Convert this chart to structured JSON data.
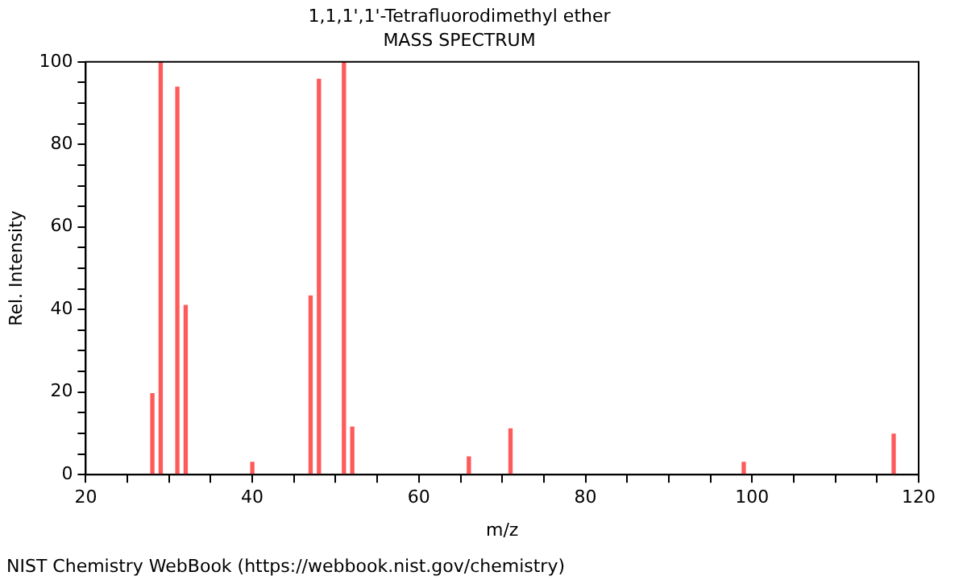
{
  "chart_data": {
    "type": "bar",
    "title": "1,1,1',1'-Tetrafluorodimethyl ether",
    "subtitle": "MASS SPECTRUM",
    "xlabel": "m/z",
    "ylabel": "Rel. Intensity",
    "x": [
      28,
      29,
      31,
      32,
      40,
      47,
      48,
      51,
      52,
      66,
      71,
      99,
      117
    ],
    "values": [
      19.6,
      100,
      93.9,
      41,
      3,
      43.3,
      95.8,
      100,
      11.5,
      4.3,
      11.1,
      3,
      9.8
    ],
    "color": "#ff5a5a",
    "xlim": [
      20,
      120
    ],
    "xticks": [
      20,
      {
        "value": 25,
        "label": null
      },
      {
        "value": 30,
        "label": null
      },
      {
        "value": 35,
        "label": null
      },
      40,
      {
        "value": 45,
        "label": null
      },
      {
        "value": 50,
        "label": null
      },
      {
        "value": 55,
        "label": null
      },
      60,
      {
        "value": 65,
        "label": null
      },
      {
        "value": 70,
        "label": null
      },
      {
        "value": 75,
        "label": null
      },
      80,
      {
        "value": 85,
        "label": null
      },
      {
        "value": 90,
        "label": null
      },
      {
        "value": 95,
        "label": null
      },
      100,
      {
        "value": 105,
        "label": null
      },
      {
        "value": 110,
        "label": null
      },
      {
        "value": 115,
        "label": null
      },
      120
    ],
    "ylim": [
      0,
      100
    ],
    "yticks": [
      0,
      {
        "value": 5,
        "label": null
      },
      {
        "value": 10,
        "label": null
      },
      {
        "value": 15,
        "label": null
      },
      20,
      {
        "value": 25,
        "label": null
      },
      {
        "value": 30,
        "label": null
      },
      {
        "value": 35,
        "label": null
      },
      40,
      {
        "value": 45,
        "label": null
      },
      {
        "value": 50,
        "label": null
      },
      {
        "value": 55,
        "label": null
      },
      60,
      {
        "value": 65,
        "label": null
      },
      {
        "value": 70,
        "label": null
      },
      {
        "value": 75,
        "label": null
      },
      80,
      {
        "value": 85,
        "label": null
      },
      {
        "value": 90,
        "label": null
      },
      {
        "value": 95,
        "label": null
      },
      100
    ],
    "grid": false,
    "legend": false,
    "annotations": [
      "NIST Chemistry WebBook (https://webbook.nist.gov/chemistry)"
    ]
  }
}
